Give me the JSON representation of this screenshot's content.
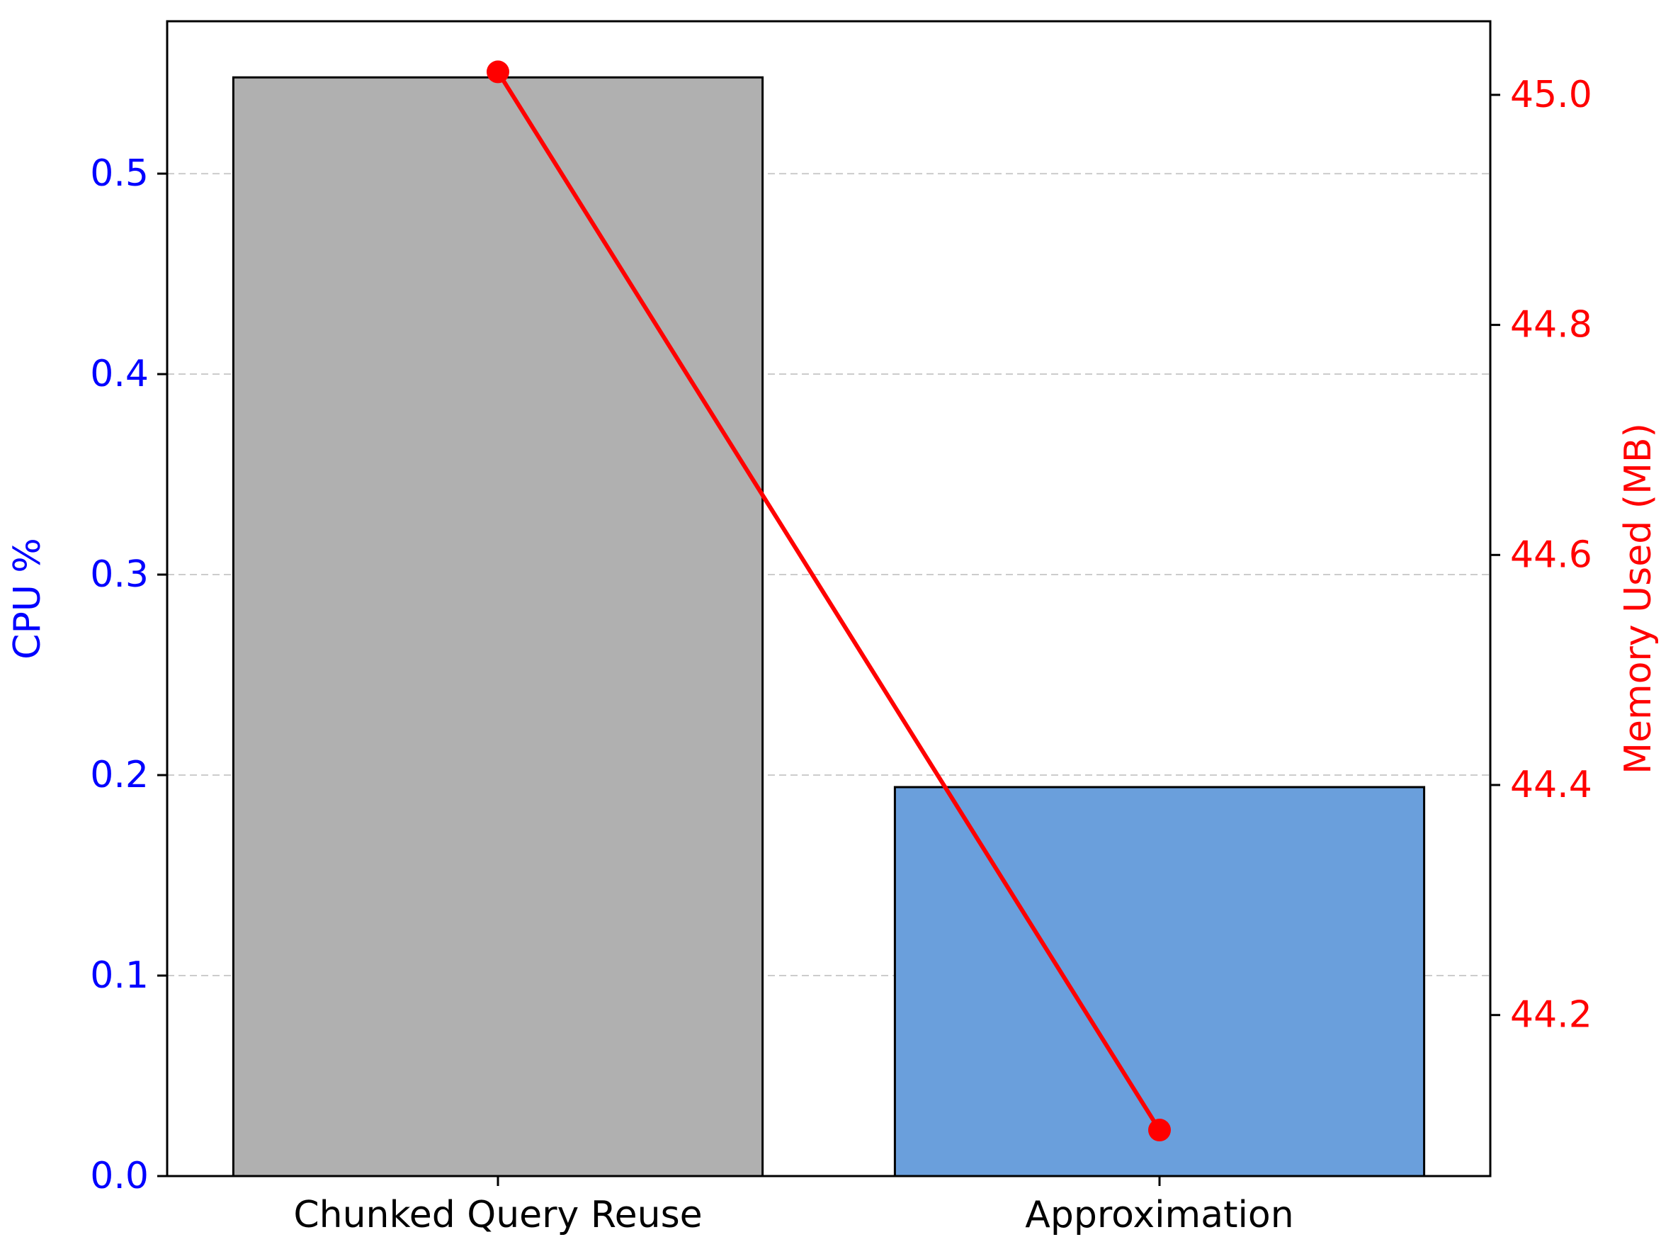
{
  "chart_data": {
    "type": "bar",
    "categories": [
      "Chunked Query Reuse",
      "Approximation"
    ],
    "series": [
      {
        "axis": "left",
        "chart_type": "bar",
        "values": [
          0.548,
          0.194
        ],
        "colors": [
          "#b0b0b0",
          "#6a9fdc"
        ]
      },
      {
        "axis": "right",
        "chart_type": "line",
        "values": [
          45.02,
          44.1
        ],
        "color": "#ff0000"
      }
    ],
    "title": "",
    "xlabel": "",
    "ylabel_left": "CPU %",
    "ylabel_right": "Memory Used (MB)",
    "ylim_left": [
      0,
      0.576
    ],
    "ylim_right": [
      44.06,
      45.064
    ],
    "yticks_left": [
      "0.0",
      "0.1",
      "0.2",
      "0.3",
      "0.4",
      "0.5"
    ],
    "yticks_right": [
      "44.2",
      "44.4",
      "44.6",
      "44.8",
      "45.0"
    ],
    "grid": "horizontal dashed",
    "colors": {
      "left_axis": "#0000ff",
      "right_axis": "#ff0000",
      "grid": "#cccccc"
    }
  }
}
